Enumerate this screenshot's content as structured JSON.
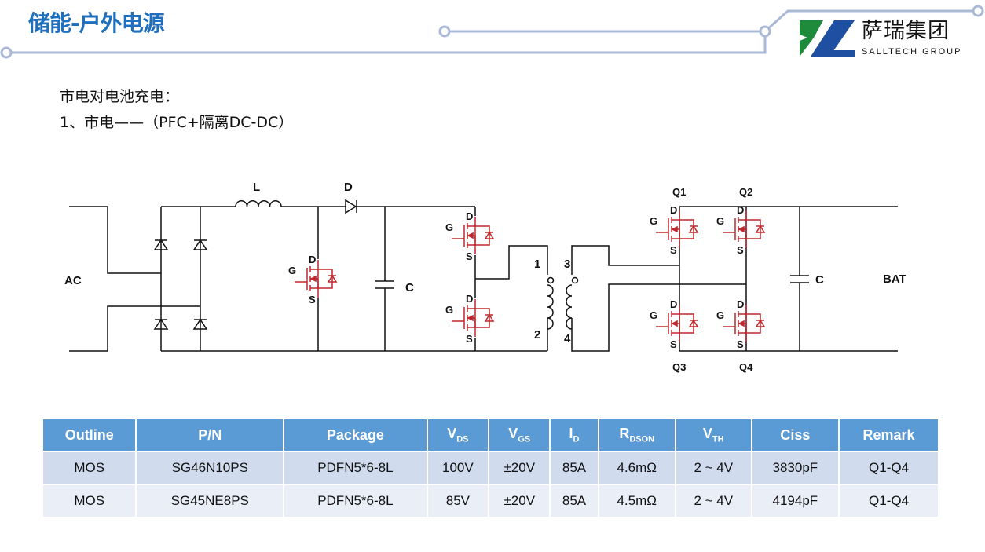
{
  "header": {
    "title": "储能-户外电源",
    "logo_cn": "萨瑞集团",
    "logo_en": "SALLTECH GROUP",
    "accent": "#1f6fbf",
    "logo_green": "#1e8a3c",
    "logo_blue": "#1f4fa0"
  },
  "content": {
    "line1": "市电对电池充电：",
    "line2": "1、市电——（PFC+隔离DC-DC）"
  },
  "circuit": {
    "ac": "AC",
    "bat": "BAT",
    "inductor": "L",
    "diode": "D",
    "cap": "C",
    "gate": "G",
    "drain": "D",
    "source": "S",
    "pin1": "1",
    "pin2": "2",
    "pin3": "3",
    "pin4": "4",
    "q1": "Q1",
    "q2": "Q2",
    "q3": "Q3",
    "q4": "Q4",
    "mos_color": "#c0272d"
  },
  "table": {
    "headers": [
      {
        "main": "Outline",
        "sub": ""
      },
      {
        "main": "P/N",
        "sub": ""
      },
      {
        "main": "Package",
        "sub": ""
      },
      {
        "main": "V",
        "sub": "DS"
      },
      {
        "main": "V",
        "sub": "GS"
      },
      {
        "main": "I",
        "sub": "D"
      },
      {
        "main": "R",
        "sub": "DSON"
      },
      {
        "main": "V",
        "sub": "TH"
      },
      {
        "main": "Ciss",
        "sub": ""
      },
      {
        "main": "Remark",
        "sub": ""
      }
    ],
    "rows": [
      [
        "MOS",
        "SG46N10PS",
        "PDFN5*6-8L",
        "100V",
        "±20V",
        "85A",
        "4.6mΩ",
        "2 ~ 4V",
        "3830pF",
        "Q1-Q4"
      ],
      [
        "MOS",
        "SG45NE8PS",
        "PDFN5*6-8L",
        "85V",
        "±20V",
        "85A",
        "4.5mΩ",
        "2 ~ 4V",
        "4194pF",
        "Q1-Q4"
      ]
    ]
  }
}
